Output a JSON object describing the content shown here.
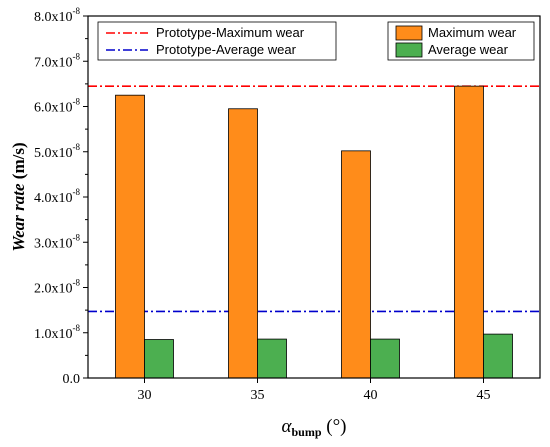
{
  "chart_data": {
    "type": "bar",
    "categories": [
      "30",
      "35",
      "40",
      "45"
    ],
    "series": [
      {
        "name": "Maximum wear",
        "color": "#ff8c1a",
        "values": [
          6.25e-08,
          5.95e-08,
          5.02e-08,
          6.45e-08
        ]
      },
      {
        "name": "Average wear",
        "color": "#4caf50",
        "values": [
          8.5e-09,
          8.6e-09,
          8.6e-09,
          9.7e-09
        ]
      }
    ],
    "reference_lines": [
      {
        "name": "Prototype-Maximum wear",
        "value": 6.45e-08,
        "color": "#ff0000",
        "style": "dash-dot"
      },
      {
        "name": "Prototype-Average wear",
        "value": 1.47e-08,
        "color": "#0000cc",
        "style": "dash-dot"
      }
    ],
    "ylim": [
      0,
      8e-08
    ],
    "y_ticks": [
      {
        "value": 0,
        "mant": "0.0",
        "sup": ""
      },
      {
        "value": 1e-08,
        "mant": "1.0x10",
        "sup": "-8"
      },
      {
        "value": 2e-08,
        "mant": "2.0x10",
        "sup": "-8"
      },
      {
        "value": 3e-08,
        "mant": "3.0x10",
        "sup": "-8"
      },
      {
        "value": 4e-08,
        "mant": "4.0x10",
        "sup": "-8"
      },
      {
        "value": 5e-08,
        "mant": "5.0x10",
        "sup": "-8"
      },
      {
        "value": 6e-08,
        "mant": "6.0x10",
        "sup": "-8"
      },
      {
        "value": 7e-08,
        "mant": "7.0x10",
        "sup": "-8"
      },
      {
        "value": 8e-08,
        "mant": "8.0x10",
        "sup": "-8"
      }
    ],
    "ylabel": "Wear rate",
    "ylabel_unit": " (m/s)",
    "xlabel_symbol": "α",
    "xlabel_sub": "bump",
    "xlabel_unit": " (°)",
    "legend_left": "top-left",
    "legend_right": "top-right",
    "grid": false
  }
}
